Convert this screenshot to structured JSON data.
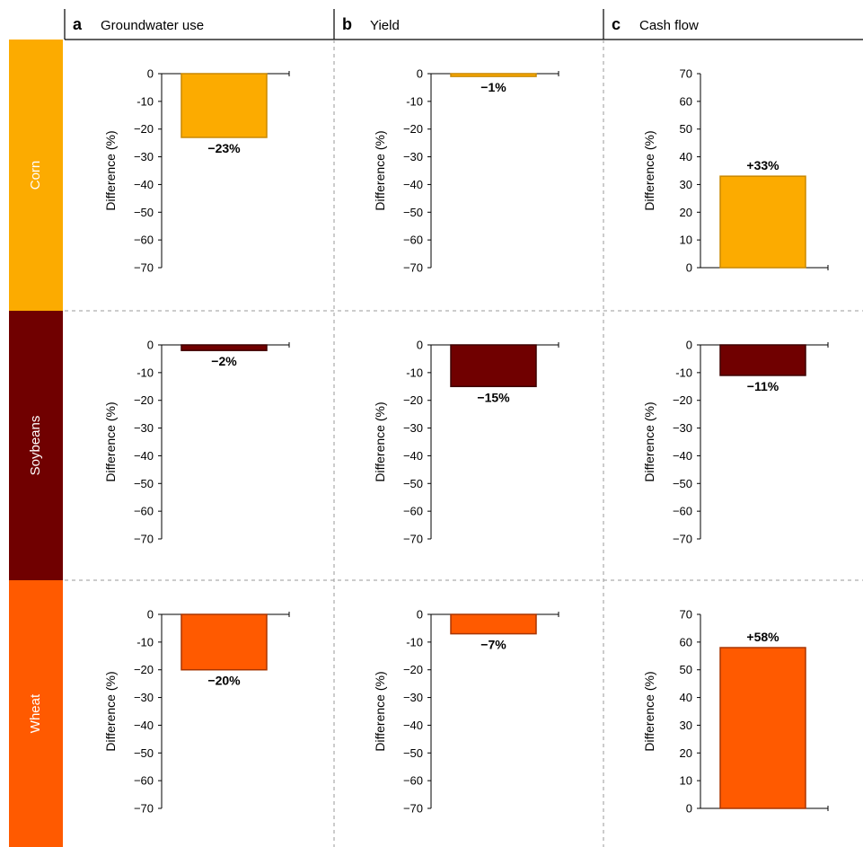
{
  "columns": [
    {
      "letter": "a",
      "label": "Groundwater use"
    },
    {
      "letter": "b",
      "label": "Yield"
    },
    {
      "letter": "c",
      "label": "Cash flow"
    }
  ],
  "rows": [
    {
      "label": "Corn",
      "color": "#FCAB00",
      "stroke": "#C98800"
    },
    {
      "label": "Soybeans",
      "color": "#700000",
      "stroke": "#3D0000"
    },
    {
      "label": "Wheat",
      "color": "#FF5A00",
      "stroke": "#A83500"
    }
  ],
  "chart_data": [
    {
      "type": "bar",
      "row": "Corn",
      "column": "Groundwater use",
      "values": [
        -23
      ],
      "data_labels": [
        "−23%"
      ],
      "ylabel": "Difference (%)",
      "ylim": [
        -70,
        0
      ],
      "yticks": [
        "0",
        "-10",
        "−20",
        "−30",
        "−40",
        "−50",
        "−60",
        "−70"
      ]
    },
    {
      "type": "bar",
      "row": "Corn",
      "column": "Yield",
      "values": [
        -1
      ],
      "data_labels": [
        "−1%"
      ],
      "ylabel": "Difference (%)",
      "ylim": [
        -70,
        0
      ],
      "yticks": [
        "0",
        "-10",
        "−20",
        "−30",
        "−40",
        "−50",
        "−60",
        "−70"
      ]
    },
    {
      "type": "bar",
      "row": "Corn",
      "column": "Cash flow",
      "values": [
        33
      ],
      "data_labels": [
        "+33%"
      ],
      "ylabel": "Difference (%)",
      "ylim": [
        0,
        70
      ],
      "yticks": [
        "70",
        "60",
        "50",
        "40",
        "30",
        "20",
        "10",
        "0"
      ]
    },
    {
      "type": "bar",
      "row": "Soybeans",
      "column": "Groundwater use",
      "values": [
        -2
      ],
      "data_labels": [
        "−2%"
      ],
      "ylabel": "Difference (%)",
      "ylim": [
        -70,
        0
      ],
      "yticks": [
        "0",
        "-10",
        "−20",
        "−30",
        "−40",
        "−50",
        "−60",
        "−70"
      ]
    },
    {
      "type": "bar",
      "row": "Soybeans",
      "column": "Yield",
      "values": [
        -15
      ],
      "data_labels": [
        "−15%"
      ],
      "ylabel": "Difference (%)",
      "ylim": [
        -70,
        0
      ],
      "yticks": [
        "0",
        "-10",
        "−20",
        "−30",
        "−40",
        "−50",
        "−60",
        "−70"
      ]
    },
    {
      "type": "bar",
      "row": "Soybeans",
      "column": "Cash flow",
      "values": [
        -11
      ],
      "data_labels": [
        "−11%"
      ],
      "ylabel": "Difference (%)",
      "ylim": [
        -70,
        0
      ],
      "yticks": [
        "0",
        "-10",
        "−20",
        "−30",
        "−40",
        "−50",
        "−60",
        "−70"
      ]
    },
    {
      "type": "bar",
      "row": "Wheat",
      "column": "Groundwater use",
      "values": [
        -20
      ],
      "data_labels": [
        "−20%"
      ],
      "ylabel": "Difference (%)",
      "ylim": [
        -70,
        0
      ],
      "yticks": [
        "0",
        "-10",
        "−20",
        "−30",
        "−40",
        "−50",
        "−60",
        "−70"
      ]
    },
    {
      "type": "bar",
      "row": "Wheat",
      "column": "Yield",
      "values": [
        -7
      ],
      "data_labels": [
        "−7%"
      ],
      "ylabel": "Difference (%)",
      "ylim": [
        -70,
        0
      ],
      "yticks": [
        "0",
        "-10",
        "−20",
        "−30",
        "−40",
        "−50",
        "−60",
        "−70"
      ]
    },
    {
      "type": "bar",
      "row": "Wheat",
      "column": "Cash flow",
      "values": [
        58
      ],
      "data_labels": [
        "+58%"
      ],
      "ylabel": "Difference (%)",
      "ylim": [
        0,
        70
      ],
      "yticks": [
        "70",
        "60",
        "50",
        "40",
        "30",
        "20",
        "10",
        "0"
      ]
    }
  ]
}
